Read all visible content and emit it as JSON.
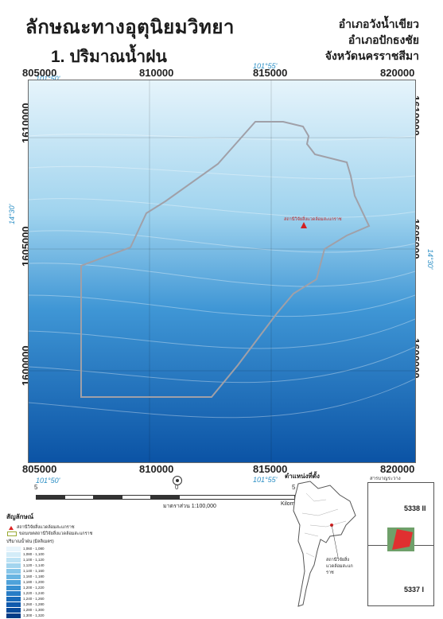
{
  "title": {
    "main": "ลักษณะทางอุตุนิยมวิทยา",
    "sub": "1. ปริมาณน้ำฝน"
  },
  "location": {
    "district1": "อำเภอวังน้ำเขียว",
    "district2": "อำเภอปักธงชัย",
    "province": "จังหวัดนครราชสีมา"
  },
  "grid": {
    "easting": [
      "805000",
      "810000",
      "815000",
      "820000"
    ],
    "northing": [
      "1610000",
      "1605000",
      "1600000"
    ],
    "longitudes": [
      "101°50'",
      "101°55'"
    ],
    "latitude": "14°30'"
  },
  "map": {
    "station_label": "สถานีวิจัยสิ่งแวดล้อมสะแกราช",
    "colors": {
      "light": "#e6f4fb",
      "dark": "#0b53a5",
      "boundary": "#a0a0a8",
      "station": "#d32020"
    }
  },
  "scale": {
    "ticks": [
      "5",
      "0",
      "5"
    ],
    "units": "Kilometers",
    "ratio": "มาตราส่วน 1:100,000"
  },
  "legend": {
    "title": "สัญลักษณ์",
    "station": "สถานีวิจัยสิ่งแวดล้อมสะแกราช",
    "boundary": "ขอบเขตสถานีวิจัยสิ่งแวดล้อมสะแกราช",
    "rain_title": "ปริมาณน้ำฝน (มิลลิเมตร)",
    "rain_classes": [
      {
        "label": "1,060 - 1,080",
        "color": "#e8f5fc"
      },
      {
        "label": "1,080 - 1,100",
        "color": "#d3ecf8"
      },
      {
        "label": "1,100 - 1,120",
        "color": "#bde2f4"
      },
      {
        "label": "1,120 - 1,140",
        "color": "#a3d5ef"
      },
      {
        "label": "1,140 - 1,160",
        "color": "#86c6e9"
      },
      {
        "label": "1,160 - 1,180",
        "color": "#69b5e2"
      },
      {
        "label": "1,180 - 1,200",
        "color": "#4ea2da"
      },
      {
        "label": "1,200 - 1,220",
        "color": "#3990d1"
      },
      {
        "label": "1,220 - 1,240",
        "color": "#277dc6"
      },
      {
        "label": "1,240 - 1,260",
        "color": "#196bba"
      },
      {
        "label": "1,260 - 1,280",
        "color": "#0f5aad"
      },
      {
        "label": "1,280 - 1,300",
        "color": "#084a9a"
      },
      {
        "label": "1,300 - 1,320",
        "color": "#053c86"
      }
    ]
  },
  "locator": {
    "title": "ตำแหน่งที่ตั้ง",
    "station_label": "สถานีวิจัยสิ่งแวดล้อมสะแกราช"
  },
  "index": {
    "title": "สารบาญระวาง",
    "sheet_north": "5338 II",
    "sheet_south": "5337 I"
  }
}
